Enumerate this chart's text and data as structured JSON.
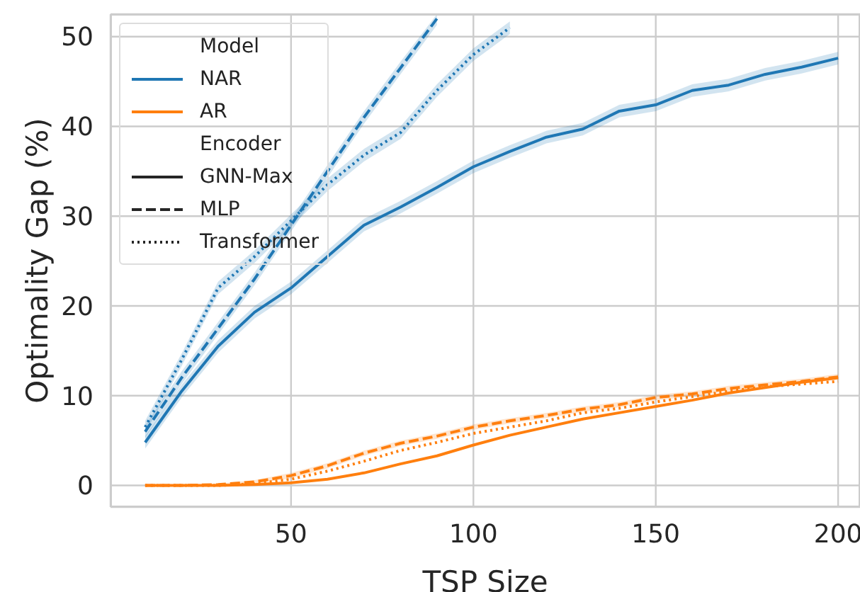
{
  "chart_data": {
    "type": "line",
    "xlabel": "TSP Size",
    "ylabel": "Optimality Gap (%)",
    "x": [
      10,
      20,
      30,
      40,
      50,
      60,
      70,
      80,
      90,
      100,
      110,
      120,
      130,
      140,
      150,
      160,
      170,
      180,
      190,
      200
    ],
    "xlim": [
      0.5,
      206
    ],
    "xticks": [
      50,
      100,
      150,
      200
    ],
    "ylim": [
      -2.4,
      52.5
    ],
    "yticks": [
      0,
      10,
      20,
      30,
      40,
      50
    ],
    "grid": true,
    "legend": "top left",
    "marker": "none",
    "legend_title": "Model",
    "annotations": [
      "Encoder",
      "GNN-Max",
      "MLP",
      "Transformer"
    ],
    "series": [
      {
        "name": "NAR",
        "color": "#1f77b4",
        "line_style": "solid",
        "values": [
          4.8,
          10.5,
          15.5,
          19.3,
          22,
          25.5,
          29,
          31,
          33.2,
          35.5,
          37.2,
          38.8,
          39.7,
          41.7,
          42.4,
          44,
          44.6,
          45.8,
          46.6,
          47.6
        ],
        "lower": [
          4.1,
          9.8,
          14.8,
          18.6,
          21.3,
          24.8,
          28.3,
          30.3,
          32.5,
          34.8,
          36.5,
          38.1,
          39,
          41,
          41.7,
          43.3,
          43.9,
          45.1,
          45.9,
          46.9
        ],
        "upper": [
          5.5,
          11.2,
          16.2,
          20,
          22.7,
          26.2,
          29.7,
          31.7,
          33.9,
          36.2,
          37.9,
          39.5,
          40.4,
          42.4,
          43.1,
          44.7,
          45.3,
          46.5,
          47.3,
          48.3
        ]
      },
      {
        "color": "#1f77b4",
        "line_style": "dashed",
        "values": [
          6,
          12,
          17.5,
          23,
          29,
          35,
          41,
          46.5,
          52,
          null,
          null,
          null,
          null,
          null,
          null,
          null,
          null,
          null,
          null,
          null
        ],
        "lower": [
          5.3,
          11.3,
          16.8,
          22.3,
          28.3,
          34.3,
          40.3,
          45.8,
          51.3,
          null,
          null,
          null,
          null,
          null,
          null,
          null,
          null,
          null,
          null,
          null
        ],
        "upper": [
          6.7,
          12.7,
          18.2,
          23.7,
          29.7,
          35.7,
          41.7,
          47.2,
          52.5,
          null,
          null,
          null,
          null,
          null,
          null,
          null,
          null,
          null,
          null,
          null
        ]
      },
      {
        "color": "#1f77b4",
        "line_style": "dotted",
        "values": [
          6.5,
          14,
          22,
          25.5,
          29.5,
          33.5,
          36.8,
          39.3,
          44,
          48,
          51,
          null,
          null,
          null,
          null,
          null,
          null,
          null,
          null,
          null
        ],
        "lower": [
          5.8,
          13.3,
          21.3,
          24.8,
          28.8,
          32.8,
          36.1,
          38.6,
          43.3,
          47.3,
          50.3,
          null,
          null,
          null,
          null,
          null,
          null,
          null,
          null,
          null
        ],
        "upper": [
          7.2,
          14.7,
          22.7,
          26.2,
          30.2,
          34.2,
          37.5,
          40,
          44.7,
          48.7,
          51.7,
          null,
          null,
          null,
          null,
          null,
          null,
          null,
          null,
          null
        ]
      },
      {
        "name": "AR",
        "color": "#ff7f0e",
        "line_style": "solid",
        "values": [
          0,
          0,
          0,
          0.1,
          0.3,
          0.7,
          1.4,
          2.4,
          3.3,
          4.5,
          5.6,
          6.5,
          7.4,
          8.1,
          8.8,
          9.5,
          10.3,
          10.9,
          11.5,
          12
        ]
      },
      {
        "color": "#ff7f0e",
        "line_style": "dashed",
        "values": [
          0,
          0,
          0.1,
          0.4,
          1.1,
          2.2,
          3.6,
          4.7,
          5.5,
          6.5,
          7.2,
          7.8,
          8.5,
          9,
          9.8,
          10.2,
          10.8,
          11.2,
          11.6,
          12.1
        ],
        "lower": [
          0,
          0,
          0,
          0.2,
          0.8,
          1.9,
          3.3,
          4.4,
          5.2,
          6.2,
          6.9,
          7.5,
          8.2,
          8.7,
          9.5,
          9.9,
          10.5,
          10.9,
          11.3,
          11.8
        ],
        "upper": [
          0.1,
          0.1,
          0.2,
          0.6,
          1.4,
          2.5,
          3.9,
          5,
          5.8,
          6.8,
          7.5,
          8.1,
          8.8,
          9.3,
          10.1,
          10.5,
          11.1,
          11.5,
          11.9,
          12.4
        ]
      },
      {
        "color": "#ff7f0e",
        "line_style": "dotted",
        "values": [
          0,
          0,
          0,
          0.2,
          0.7,
          1.6,
          2.7,
          3.9,
          4.8,
          5.8,
          6.5,
          7.2,
          8.1,
          8.6,
          9.3,
          9.9,
          10.5,
          11,
          11.3,
          11.6
        ]
      }
    ]
  }
}
